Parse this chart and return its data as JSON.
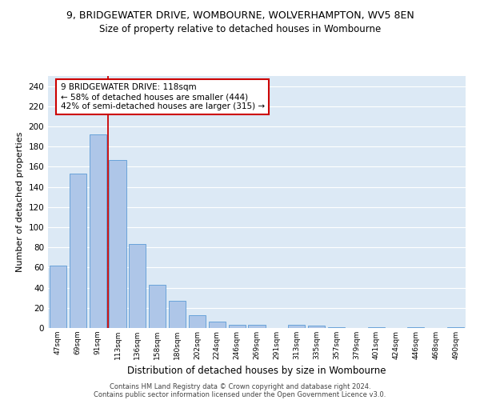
{
  "title1": "9, BRIDGEWATER DRIVE, WOMBOURNE, WOLVERHAMPTON, WV5 8EN",
  "title2": "Size of property relative to detached houses in Wombourne",
  "xlabel": "Distribution of detached houses by size in Wombourne",
  "ylabel": "Number of detached properties",
  "categories": [
    "47sqm",
    "69sqm",
    "91sqm",
    "113sqm",
    "136sqm",
    "158sqm",
    "180sqm",
    "202sqm",
    "224sqm",
    "246sqm",
    "269sqm",
    "291sqm",
    "313sqm",
    "335sqm",
    "357sqm",
    "379sqm",
    "401sqm",
    "424sqm",
    "446sqm",
    "468sqm",
    "490sqm"
  ],
  "values": [
    62,
    153,
    192,
    167,
    83,
    43,
    27,
    13,
    6,
    3,
    3,
    0,
    3,
    2,
    1,
    0,
    1,
    0,
    1,
    0,
    1
  ],
  "bar_color": "#aec6e8",
  "bar_edge_color": "#5b9bd5",
  "property_line_x": 2.5,
  "annotation_title": "9 BRIDGEWATER DRIVE: 118sqm",
  "annotation_line1": "← 58% of detached houses are smaller (444)",
  "annotation_line2": "42% of semi-detached houses are larger (315) →",
  "annotation_box_color": "#ffffff",
  "annotation_box_edge_color": "#cc0000",
  "vline_color": "#cc0000",
  "background_color": "#dce9f5",
  "grid_color": "#ffffff",
  "ylim": [
    0,
    250
  ],
  "yticks": [
    0,
    20,
    40,
    60,
    80,
    100,
    120,
    140,
    160,
    180,
    200,
    220,
    240
  ],
  "footer1": "Contains HM Land Registry data © Crown copyright and database right 2024.",
  "footer2": "Contains public sector information licensed under the Open Government Licence v3.0."
}
